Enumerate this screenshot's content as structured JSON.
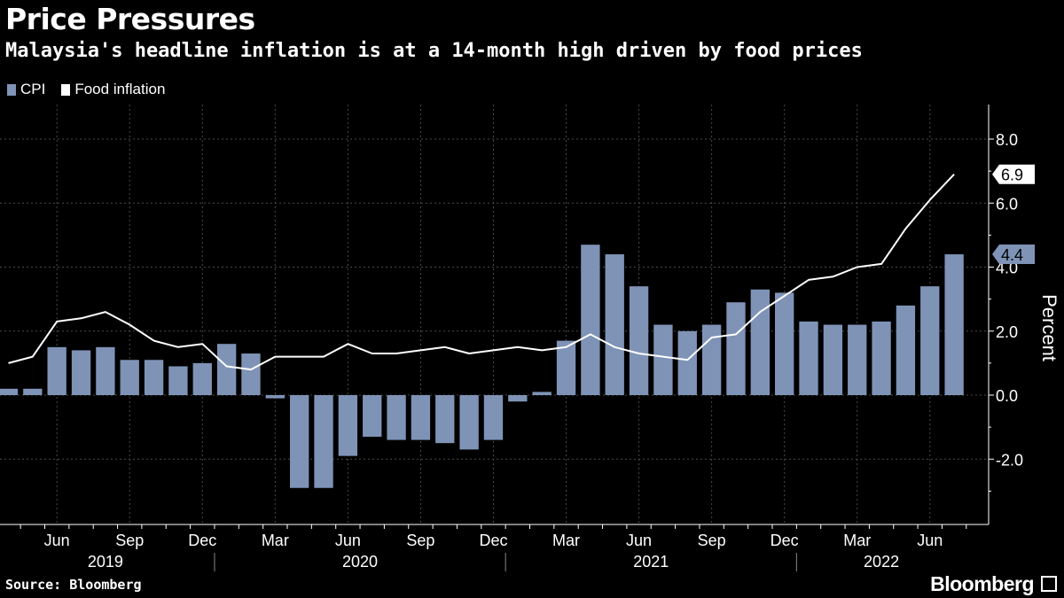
{
  "header": {
    "title": "Price Pressures",
    "subtitle": "Malaysia's headline inflation is at a 14-month high driven by food prices"
  },
  "footer": {
    "source": "Source: Bloomberg",
    "brand": "Bloomberg"
  },
  "colors": {
    "background": "#000000",
    "cpi_bar": "#7f93b7",
    "food_line": "#ffffff",
    "grid": "#4a4a4a",
    "text": "#ffffff"
  },
  "chart_data": {
    "type": "bar",
    "title": "Price Pressures",
    "subtitle": "Malaysia's headline inflation is at a 14-month high driven by food prices",
    "ylabel": "Percent",
    "ylim": [
      -4.0,
      9.0
    ],
    "yticks": [
      -2.0,
      0.0,
      2.0,
      4.0,
      6.0,
      8.0
    ],
    "ytick_labels": [
      "-2.0",
      "0.0",
      "2.0",
      "4.0",
      "6.0",
      "8.0"
    ],
    "legend_position": "top-left",
    "months": [
      "2019-04",
      "2019-05",
      "2019-06",
      "2019-07",
      "2019-08",
      "2019-09",
      "2019-10",
      "2019-11",
      "2019-12",
      "2020-01",
      "2020-02",
      "2020-03",
      "2020-04",
      "2020-05",
      "2020-06",
      "2020-07",
      "2020-08",
      "2020-09",
      "2020-10",
      "2020-11",
      "2020-12",
      "2021-01",
      "2021-02",
      "2021-03",
      "2021-04",
      "2021-05",
      "2021-06",
      "2021-07",
      "2021-08",
      "2021-09",
      "2021-10",
      "2021-11",
      "2021-12",
      "2022-01",
      "2022-02",
      "2022-03",
      "2022-04",
      "2022-05",
      "2022-06",
      "2022-07"
    ],
    "x_tick_labels": [
      {
        "label": "Jun",
        "month_index": 2
      },
      {
        "label": "Sep",
        "month_index": 5
      },
      {
        "label": "Dec",
        "month_index": 8
      },
      {
        "label": "Mar",
        "month_index": 11
      },
      {
        "label": "Jun",
        "month_index": 14
      },
      {
        "label": "Sep",
        "month_index": 17
      },
      {
        "label": "Dec",
        "month_index": 20
      },
      {
        "label": "Mar",
        "month_index": 23
      },
      {
        "label": "Jun",
        "month_index": 26
      },
      {
        "label": "Sep",
        "month_index": 29
      },
      {
        "label": "Dec",
        "month_index": 32
      },
      {
        "label": "Mar",
        "month_index": 35
      },
      {
        "label": "Jun",
        "month_index": 38
      }
    ],
    "years": [
      {
        "label": "2019",
        "start_index": 0,
        "end_index": 8
      },
      {
        "label": "2020",
        "start_index": 9,
        "end_index": 20
      },
      {
        "label": "2021",
        "start_index": 21,
        "end_index": 32
      },
      {
        "label": "2022",
        "start_index": 33,
        "end_index": 39
      }
    ],
    "series": [
      {
        "name": "CPI",
        "kind": "bar",
        "color": "#7f93b7",
        "values": [
          0.2,
          0.2,
          1.5,
          1.4,
          1.5,
          1.1,
          1.1,
          0.9,
          1.0,
          1.6,
          1.3,
          -0.1,
          -2.9,
          -2.9,
          -1.9,
          -1.3,
          -1.4,
          -1.4,
          -1.5,
          -1.7,
          -1.4,
          -0.2,
          0.1,
          1.7,
          4.7,
          4.4,
          3.4,
          2.2,
          2.0,
          2.2,
          2.9,
          3.3,
          3.2,
          2.3,
          2.2,
          2.2,
          2.3,
          2.8,
          3.4,
          4.4
        ],
        "last_value_label": "4.4"
      },
      {
        "name": "Food inflation",
        "kind": "line",
        "color": "#ffffff",
        "values": [
          1.0,
          1.2,
          2.3,
          2.4,
          2.6,
          2.2,
          1.7,
          1.5,
          1.6,
          0.9,
          0.8,
          1.2,
          1.2,
          1.2,
          1.6,
          1.3,
          1.3,
          1.4,
          1.5,
          1.3,
          1.4,
          1.5,
          1.4,
          1.5,
          1.9,
          1.5,
          1.3,
          1.2,
          1.1,
          1.8,
          1.9,
          2.6,
          3.1,
          3.6,
          3.7,
          4.0,
          4.1,
          5.2,
          6.1,
          6.9
        ],
        "last_value_label": "6.9"
      }
    ]
  }
}
